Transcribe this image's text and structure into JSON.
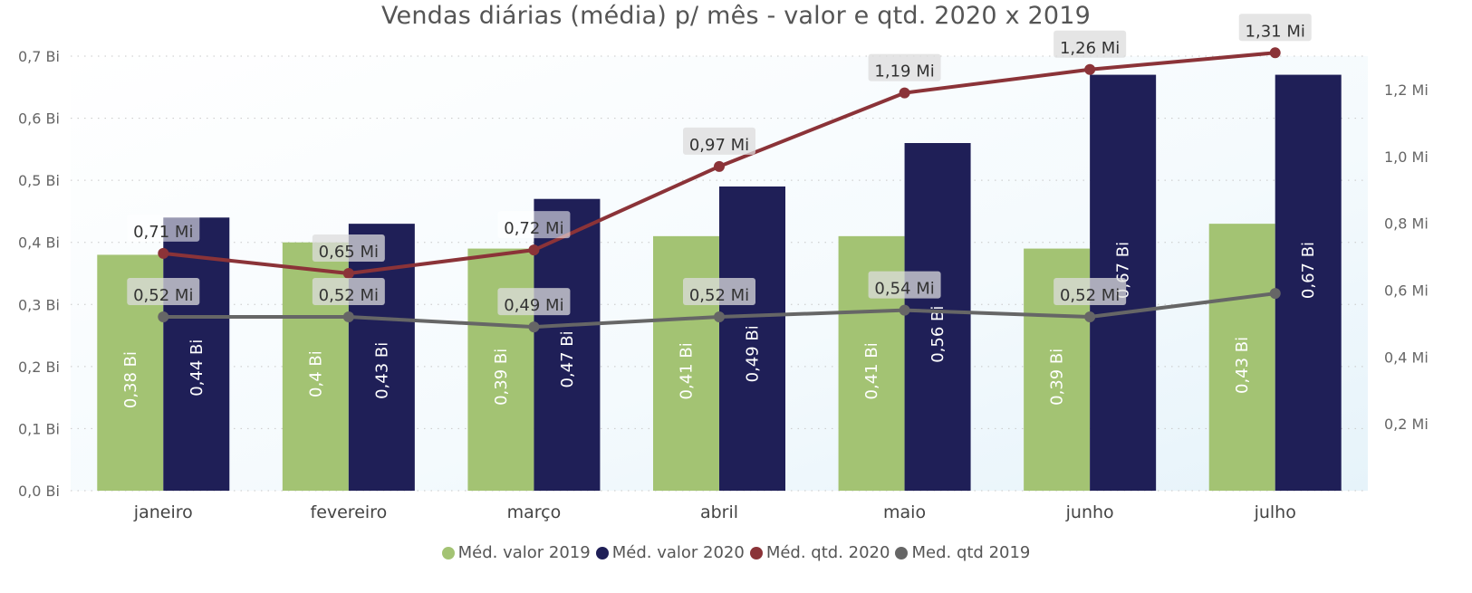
{
  "chart_data": {
    "type": "bar",
    "title": "Vendas diárias (média) p/ mês - valor e qtd. 2020 x 2019",
    "categories": [
      "janeiro",
      "fevereiro",
      "março",
      "abril",
      "maio",
      "junho",
      "julho"
    ],
    "y_left": {
      "range": [
        0,
        0.7
      ],
      "ticks": [
        "0,0 Bi",
        "0,1 Bi",
        "0,2 Bi",
        "0,3 Bi",
        "0,4 Bi",
        "0,5 Bi",
        "0,6 Bi",
        "0,7 Bi"
      ],
      "tick_values": [
        0,
        0.1,
        0.2,
        0.3,
        0.4,
        0.5,
        0.6,
        0.7
      ]
    },
    "y_right": {
      "range": [
        0,
        1.3
      ],
      "ticks": [
        "0,2 Mi",
        "0,4 Mi",
        "0,6 Mi",
        "0,8 Mi",
        "1,0 Mi",
        "1,2 Mi"
      ],
      "tick_values": [
        0.2,
        0.4,
        0.6,
        0.8,
        1.0,
        1.2
      ]
    },
    "grid": true,
    "legend_position": "bottom",
    "bar_series": [
      {
        "name": "Méd. valor 2019",
        "color": "#a3c373",
        "values": [
          0.38,
          0.4,
          0.39,
          0.41,
          0.41,
          0.39,
          0.43
        ],
        "labels": [
          "0,38 Bi",
          "0,4 Bi",
          "0,39 Bi",
          "0,41 Bi",
          "0,41 Bi",
          "0,39 Bi",
          "0,43 Bi"
        ]
      },
      {
        "name": "Méd. valor 2020",
        "color": "#1f1f57",
        "values": [
          0.44,
          0.43,
          0.47,
          0.49,
          0.56,
          0.67,
          0.67
        ],
        "labels": [
          "0,44 Bi",
          "0,43 Bi",
          "0,47 Bi",
          "0,49 Bi",
          "0,56 Bi",
          "0,67 Bi",
          "0,67 Bi"
        ]
      }
    ],
    "line_series": [
      {
        "name": "Méd. qtd. 2020",
        "color": "#8b3338",
        "values": [
          0.71,
          0.65,
          0.72,
          0.97,
          1.19,
          1.26,
          1.31
        ],
        "labels": [
          "0,71 Mi",
          "0,65 Mi",
          "0,72 Mi",
          "0,97 Mi",
          "1,19 Mi",
          "1,26 Mi",
          "1,31 Mi"
        ]
      },
      {
        "name": "Med. qtd 2019",
        "color": "#666666",
        "values": [
          0.52,
          0.52,
          0.49,
          0.52,
          0.54,
          0.52,
          0.59
        ],
        "labels": [
          "0,52 Mi",
          "0,52 Mi",
          "0,49 Mi",
          "0,52 Mi",
          "0,54 Mi",
          "0,52 Mi",
          ""
        ]
      }
    ]
  }
}
